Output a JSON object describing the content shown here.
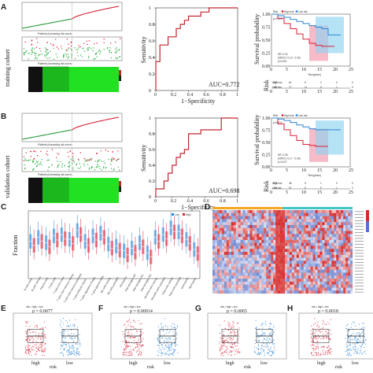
{
  "panels": {
    "A": {
      "letter": "A",
      "cohort_label": "training cohort"
    },
    "B": {
      "letter": "B",
      "cohort_label": "validation cohort"
    },
    "C": {
      "letter": "C"
    },
    "D": {
      "letter": "D"
    },
    "E": {
      "letter": "E"
    },
    "F": {
      "letter": "F"
    },
    "G": {
      "letter": "G"
    },
    "H": {
      "letter": "H"
    }
  },
  "risk_score_xlabel": "Patients (increasing risk socre)",
  "colors": {
    "high_risk": "#d9233a",
    "low_risk": "#2e86d6",
    "heatmap_green": "#22e022",
    "roc_line": "#c0272d",
    "survival_ci_high": "#f4a3b5",
    "survival_ci_low": "#8fd3f0"
  },
  "chart_data": [
    {
      "type": "line",
      "panel": "A-roc",
      "xlabel": "1−Specificity",
      "ylabel": "Sensitivity",
      "annotation": "AUC=0.772",
      "xlim": [
        0,
        1
      ],
      "ylim": [
        0,
        1
      ],
      "x": [
        0,
        0,
        0.05,
        0.05,
        0.15,
        0.15,
        0.25,
        0.25,
        0.3,
        0.3,
        0.35,
        0.35,
        0.4,
        0.4,
        0.55,
        0.55,
        0.65,
        0.65,
        1.0
      ],
      "y": [
        0,
        0.35,
        0.35,
        0.55,
        0.55,
        0.65,
        0.65,
        0.75,
        0.75,
        0.8,
        0.8,
        0.85,
        0.85,
        0.9,
        0.9,
        0.95,
        0.95,
        1.0,
        1.0
      ],
      "xticks": [
        "0",
        "0.2",
        "0.4",
        "0.6",
        "0.8",
        "1"
      ],
      "yticks": [
        "0",
        "0.2",
        "0.4",
        "0.6",
        "0.8",
        "1"
      ]
    },
    {
      "type": "line",
      "panel": "B-roc",
      "xlabel": "1−Specificity",
      "ylabel": "Sensitivity",
      "annotation": "AUC=0.698",
      "xlim": [
        0,
        1
      ],
      "ylim": [
        0,
        1
      ],
      "x": [
        0,
        0,
        0.1,
        0.1,
        0.15,
        0.15,
        0.2,
        0.2,
        0.25,
        0.25,
        0.3,
        0.3,
        0.35,
        0.35,
        0.4,
        0.4,
        0.55,
        0.55,
        0.8,
        0.8,
        1.0
      ],
      "y": [
        0,
        0.1,
        0.1,
        0.2,
        0.2,
        0.3,
        0.3,
        0.4,
        0.4,
        0.5,
        0.5,
        0.55,
        0.55,
        0.6,
        0.6,
        0.8,
        0.8,
        0.85,
        0.85,
        1.0,
        1.0
      ],
      "xticks": [
        "0",
        "0.2",
        "0.4",
        "0.6",
        "0.8",
        "1"
      ],
      "yticks": [
        "0",
        "0.2",
        "0.4",
        "0.6",
        "0.8",
        "1"
      ]
    },
    {
      "type": "line",
      "panel": "A-km",
      "xlabel": "Time(years)",
      "ylabel": "Survival probability",
      "xticks": [
        "0",
        "5",
        "10",
        "15",
        "20",
        "25"
      ],
      "yticks": [
        "0.00",
        "0.25",
        "0.50",
        "0.75",
        "1.00"
      ],
      "xlim": [
        0,
        25
      ],
      "ylim": [
        0,
        1
      ],
      "legend": [
        "Risk",
        "High risk",
        "Low risk"
      ],
      "pvalue": "p=0.024",
      "hr_text": [
        "HR: 0.24",
        "(95%CI: 0.13 - 0.42)",
        "p<0.001"
      ],
      "series": [
        {
          "name": "High risk",
          "x": [
            0,
            2,
            4,
            6,
            8,
            10,
            12,
            14,
            16,
            18,
            20
          ],
          "y": [
            1.0,
            0.92,
            0.82,
            0.72,
            0.62,
            0.52,
            0.44,
            0.4,
            0.38,
            0.38,
            0.38
          ]
        },
        {
          "name": "Low risk",
          "x": [
            0,
            2,
            4,
            6,
            8,
            10,
            12,
            14,
            16,
            18,
            20,
            22
          ],
          "y": [
            1.0,
            0.97,
            0.94,
            0.9,
            0.86,
            0.82,
            0.78,
            0.75,
            0.72,
            0.6,
            0.6,
            0.6
          ]
        }
      ],
      "risk_table": {
        "title": "Risk",
        "rows": [
          {
            "name": "High risk",
            "values": [
              "270",
              "61",
              "6",
              "2",
              "0",
              "0"
            ]
          },
          {
            "name": "Low risk",
            "values": [
              "270",
              "77",
              "11",
              "5",
              "1",
              "0"
            ]
          }
        ]
      }
    },
    {
      "type": "line",
      "panel": "B-km",
      "xlabel": "Time(years)",
      "ylabel": "Survival probability",
      "xticks": [
        "0",
        "5",
        "10",
        "15",
        "20",
        "25"
      ],
      "yticks": [
        "0.00",
        "0.25",
        "0.50",
        "0.75",
        "1.00"
      ],
      "xlim": [
        0,
        25
      ],
      "ylim": [
        0,
        1
      ],
      "legend": [
        "Risk",
        "High risk",
        "Low risk"
      ],
      "pvalue": "p=0.017",
      "hr_text": [
        "HR: 0.39",
        "(95%CI: 0.17 - 0.90)",
        "p=0.027"
      ],
      "series": [
        {
          "name": "High risk",
          "x": [
            0,
            2,
            4,
            6,
            8,
            10,
            12,
            14,
            16,
            18
          ],
          "y": [
            1.0,
            0.88,
            0.76,
            0.64,
            0.54,
            0.46,
            0.44,
            0.42,
            0.42,
            0.42
          ]
        },
        {
          "name": "Low risk",
          "x": [
            0,
            2,
            4,
            6,
            8,
            10,
            12,
            14,
            16,
            18,
            20,
            22
          ],
          "y": [
            1.0,
            0.98,
            0.95,
            0.91,
            0.86,
            0.82,
            0.78,
            0.76,
            0.76,
            0.76,
            0.76,
            0.76
          ]
        }
      ],
      "risk_table": {
        "title": "Risk",
        "rows": [
          {
            "name": "High risk",
            "values": [
              "274",
              "48",
              "5",
              "1",
              "0",
              "0"
            ]
          },
          {
            "name": "Low risk",
            "values": [
              "274",
              "57",
              "8",
              "5",
              "1",
              "0"
            ]
          }
        ]
      }
    },
    {
      "type": "box",
      "panel": "C",
      "ylabel": "Fraction",
      "legend": [
        "Low",
        "High"
      ],
      "categories": [
        "B cells naive",
        "B cells memory",
        "Plasma cells",
        "T cells CD8",
        "T cells CD4 naive",
        "T cells CD4 memory resting",
        "T cells CD4 memory activated",
        "T cells follicular helper",
        "T cells regulatory (Tregs)",
        "T cells gamma delta",
        "NK cells resting",
        "NK cells activated",
        "Monocytes",
        "Macrophages M0",
        "Macrophages M1",
        "Macrophages M2",
        "Dendritic cells resting",
        "Dendritic cells activated",
        "Mast cells resting",
        "Mast cells activated",
        "Eosinophils",
        "Neutrophils"
      ],
      "medians": [
        0.52,
        0.58,
        0.5,
        0.6,
        0.62,
        0.55,
        0.68,
        0.52,
        0.6,
        0.64,
        0.48,
        0.45,
        0.38,
        0.42,
        0.5,
        0.35,
        0.58,
        0.62,
        0.72,
        0.66,
        0.55,
        0.4
      ]
    },
    {
      "type": "scatter",
      "panel": "E",
      "subtitle": "risk ▪ high ▪ low",
      "pvalue": "p = 0.0077",
      "xlabel": "risk",
      "categories": [
        "high",
        "low"
      ]
    },
    {
      "type": "scatter",
      "panel": "F",
      "subtitle": "risk ▪ high ▪ low",
      "pvalue": "p = 0.00014",
      "xlabel": "risk",
      "categories": [
        "high",
        "low"
      ]
    },
    {
      "type": "scatter",
      "panel": "G",
      "subtitle": "risk ▪ high ▪ low",
      "pvalue": "p = 0.0065",
      "xlabel": "risk",
      "categories": [
        "high",
        "low"
      ]
    },
    {
      "type": "scatter",
      "panel": "H",
      "subtitle": "risk ▪ high ▪ low",
      "pvalue": "p = 0.0018",
      "xlabel": "risk",
      "categories": [
        "high",
        "low"
      ]
    }
  ]
}
